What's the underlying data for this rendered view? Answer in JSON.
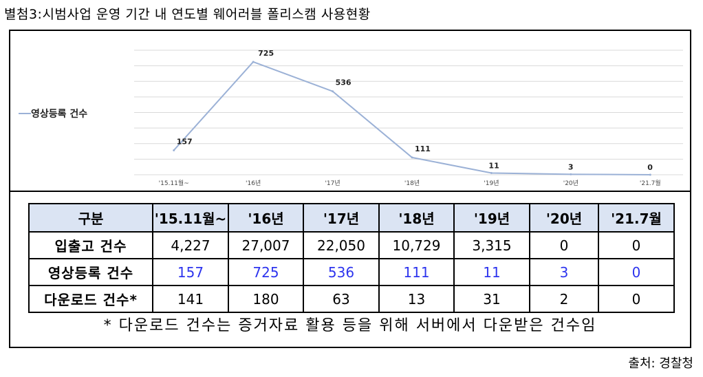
{
  "page_title": "별첨3:시범사업 운영 기간 내 연도별 웨어러블 폴리스캠 사용현황",
  "chart_data": {
    "type": "line",
    "categories": [
      "'15.11월~",
      "'16년",
      "'17년",
      "'18년",
      "'19년",
      "'20년",
      "'21.7월"
    ],
    "series": [
      {
        "name": "영상등록 건수",
        "values": [
          157,
          725,
          536,
          111,
          11,
          3,
          0
        ]
      }
    ],
    "ylim": [
      0,
      800
    ],
    "grid": true,
    "legend": "left",
    "colors": {
      "line": "#9bb1d6",
      "grid": "#d9d9d9"
    }
  },
  "table": {
    "headers": [
      "구분",
      "'15.11월~",
      "'16년",
      "'17년",
      "'18년",
      "'19년",
      "'20년",
      "'21.7월"
    ],
    "rows": [
      {
        "label": "입출고 건수",
        "values": [
          "4,227",
          "27,007",
          "22,050",
          "10,729",
          "3,315",
          "0",
          "0"
        ],
        "highlight": false
      },
      {
        "label": "영상등록 건수",
        "values": [
          "157",
          "725",
          "536",
          "111",
          "11",
          "3",
          "0"
        ],
        "highlight": true
      },
      {
        "label": "다운로드 건수*",
        "values": [
          "141",
          "180",
          "63",
          "13",
          "31",
          "2",
          "0"
        ],
        "highlight": false
      }
    ],
    "header_bg": "#dbe4f3",
    "highlight_color": "#2d34ee"
  },
  "footnote": "* 다운로드 건수는 증거자료 활용 등을 위해 서버에서 다운받은 건수임",
  "source": "출처: 경찰청"
}
